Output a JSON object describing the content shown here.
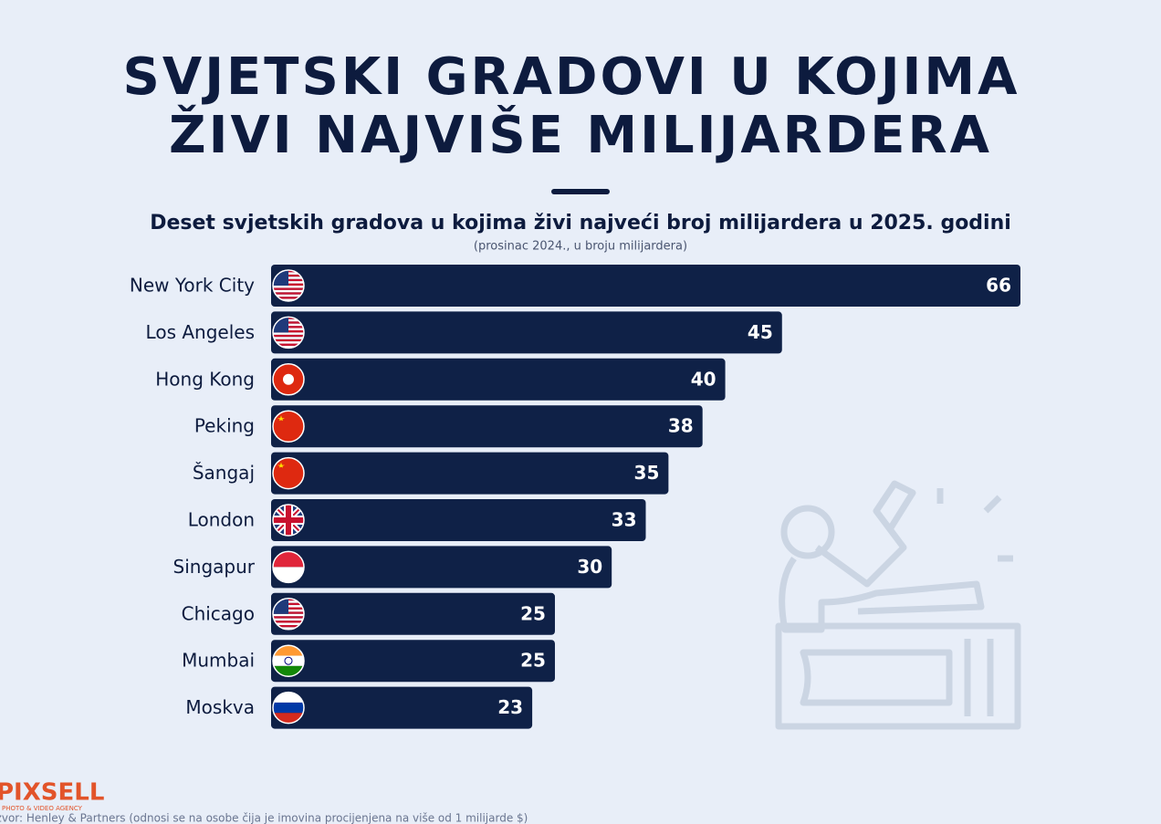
{
  "chart_data": {
    "type": "bar",
    "orientation": "horizontal",
    "title": [
      "SVJETSKI GRADOVI U KOJIMA",
      "ŽIVI NAJVIŠE MILIJARDERA"
    ],
    "subtitle": "Deset svjetskih gradova u kojima živi najveći broj milijardera u 2025. godini",
    "note": "(prosinac 2024., u broju milijardera)",
    "categories": [
      "New York City",
      "Los Angeles",
      "Hong Kong",
      "Peking",
      "Šangaj",
      "London",
      "Singapur",
      "Chicago",
      "Mumbai",
      "Moskva"
    ],
    "values": [
      66,
      45,
      40,
      38,
      35,
      33,
      30,
      25,
      25,
      23
    ],
    "color": "#0f2147",
    "source": "Izvor: Henley & Partners (odnosi se na osobe čija je imovina procijenjena na više od 1 milijarde $)",
    "logo": {
      "name": "PIXSELL",
      "tagline": "PHOTO & VIDEO AGENCY"
    }
  }
}
